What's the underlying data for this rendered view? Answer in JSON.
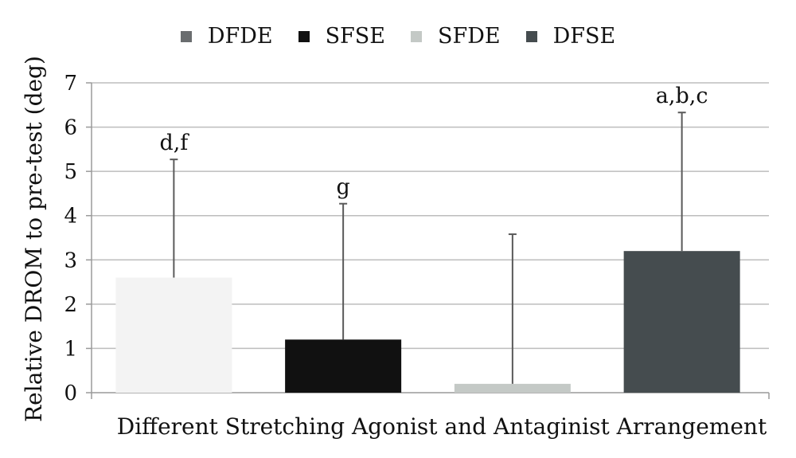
{
  "chart_data": {
    "type": "bar",
    "categories": [
      "DFDE",
      "SFSE",
      "SFDE",
      "DFSE"
    ],
    "values": [
      2.6,
      1.2,
      0.2,
      3.2
    ],
    "error_upper": [
      5.27,
      4.27,
      3.58,
      6.33
    ],
    "annotations": [
      "d,f",
      "g",
      "",
      "a,b,c"
    ],
    "colors": [
      "#f3f3f3",
      "#111111",
      "#c4c9c6",
      "#454c4f"
    ],
    "legend": [
      {
        "label": "DFDE",
        "color": "#6a6d6f"
      },
      {
        "label": "SFSE",
        "color": "#111111"
      },
      {
        "label": "SFDE",
        "color": "#c4c9c6"
      },
      {
        "label": "DFSE",
        "color": "#454c4f"
      }
    ],
    "title": "",
    "xlabel": "Different Stretching Agonist and Antaginist Arrangement",
    "ylabel": "Relative DROM to pre-test (deg)",
    "ylim": [
      0,
      7
    ],
    "yticks": [
      "0",
      "1",
      "2",
      "3",
      "4",
      "5",
      "6",
      "7"
    ],
    "grid": true,
    "legend_position": "top"
  }
}
